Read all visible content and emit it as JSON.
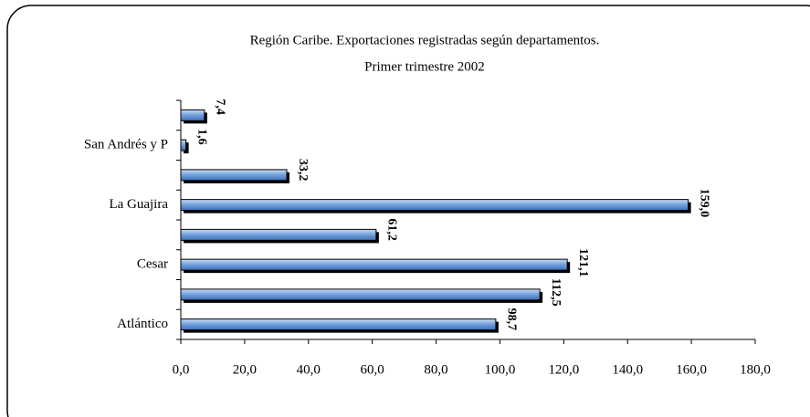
{
  "chart_data": {
    "type": "bar",
    "orientation": "horizontal",
    "title": "Región Caribe. Exportaciones registradas según departamentos.",
    "subtitle": "Primer trimestre 2002",
    "categories": [
      "Atlántico",
      null,
      "Cesar",
      null,
      "La Guajira",
      null,
      "San Andrés y P",
      null
    ],
    "values": [
      98.7,
      112.5,
      121.1,
      61.2,
      159.0,
      33.2,
      1.6,
      7.4
    ],
    "value_labels": [
      "98,7",
      "112,5",
      "121,1",
      "61,2",
      "159,0",
      "33,2",
      "1,6",
      "7,4"
    ],
    "color": "#5b8fd0",
    "xlim": [
      0,
      180
    ],
    "xticks": [
      {
        "value": 0,
        "label": "0,0"
      },
      {
        "value": 20,
        "label": "20,0"
      },
      {
        "value": 40,
        "label": "40,0"
      },
      {
        "value": 60,
        "label": "60,0"
      },
      {
        "value": 80,
        "label": "80,0"
      },
      {
        "value": 100,
        "label": "100,0"
      },
      {
        "value": 120,
        "label": "120,0"
      },
      {
        "value": 140,
        "label": "140,0"
      },
      {
        "value": 160,
        "label": "160,0"
      },
      {
        "value": 180,
        "label": "180,0"
      }
    ],
    "grid": false
  }
}
